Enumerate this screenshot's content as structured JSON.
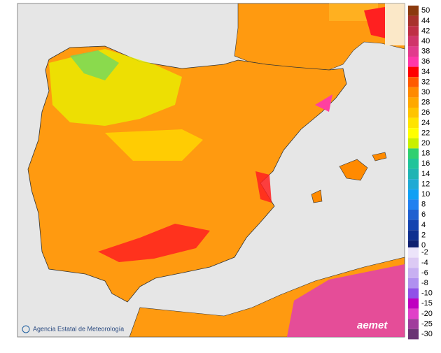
{
  "map": {
    "credit": "Agencia Estatal de Meteorología",
    "logo": "aemet"
  },
  "legend": {
    "positive": [
      {
        "label": "50",
        "color": "#8b3a0e"
      },
      {
        "label": "44",
        "color": "#a8322c"
      },
      {
        "label": "42",
        "color": "#bf2f45"
      },
      {
        "label": "40",
        "color": "#d0356a"
      },
      {
        "label": "38",
        "color": "#e23b8c"
      },
      {
        "label": "36",
        "color": "#ff38a8"
      },
      {
        "label": "34",
        "color": "#ff0000"
      },
      {
        "label": "32",
        "color": "#ff5a00"
      },
      {
        "label": "30",
        "color": "#ff8a00"
      },
      {
        "label": "28",
        "color": "#ffa800"
      },
      {
        "label": "26",
        "color": "#ffc400"
      },
      {
        "label": "24",
        "color": "#ffe400"
      },
      {
        "label": "22",
        "color": "#ffff00"
      },
      {
        "label": "20",
        "color": "#c8f000"
      },
      {
        "label": "18",
        "color": "#30d070"
      },
      {
        "label": "16",
        "color": "#20c49a"
      },
      {
        "label": "14",
        "color": "#20b4b4"
      },
      {
        "label": "12",
        "color": "#20aad4"
      },
      {
        "label": "10",
        "color": "#10a0f4"
      },
      {
        "label": "8",
        "color": "#2080f0"
      },
      {
        "label": "6",
        "color": "#2060d0"
      },
      {
        "label": "4",
        "color": "#1444b0"
      },
      {
        "label": "2",
        "color": "#103090"
      },
      {
        "label": "0",
        "color": "#102070"
      }
    ],
    "negative": [
      {
        "label": "-2",
        "color": "#ece4fa"
      },
      {
        "label": "-4",
        "color": "#dccaf4"
      },
      {
        "label": "-6",
        "color": "#c8b0f2"
      },
      {
        "label": "-8",
        "color": "#b090f0"
      },
      {
        "label": "-10",
        "color": "#9050e8"
      },
      {
        "label": "-15",
        "color": "#c000c0"
      },
      {
        "label": "-20",
        "color": "#e040c8"
      },
      {
        "label": "-25",
        "color": "#a03c9c"
      },
      {
        "label": "-30",
        "color": "#6a3474"
      }
    ]
  }
}
